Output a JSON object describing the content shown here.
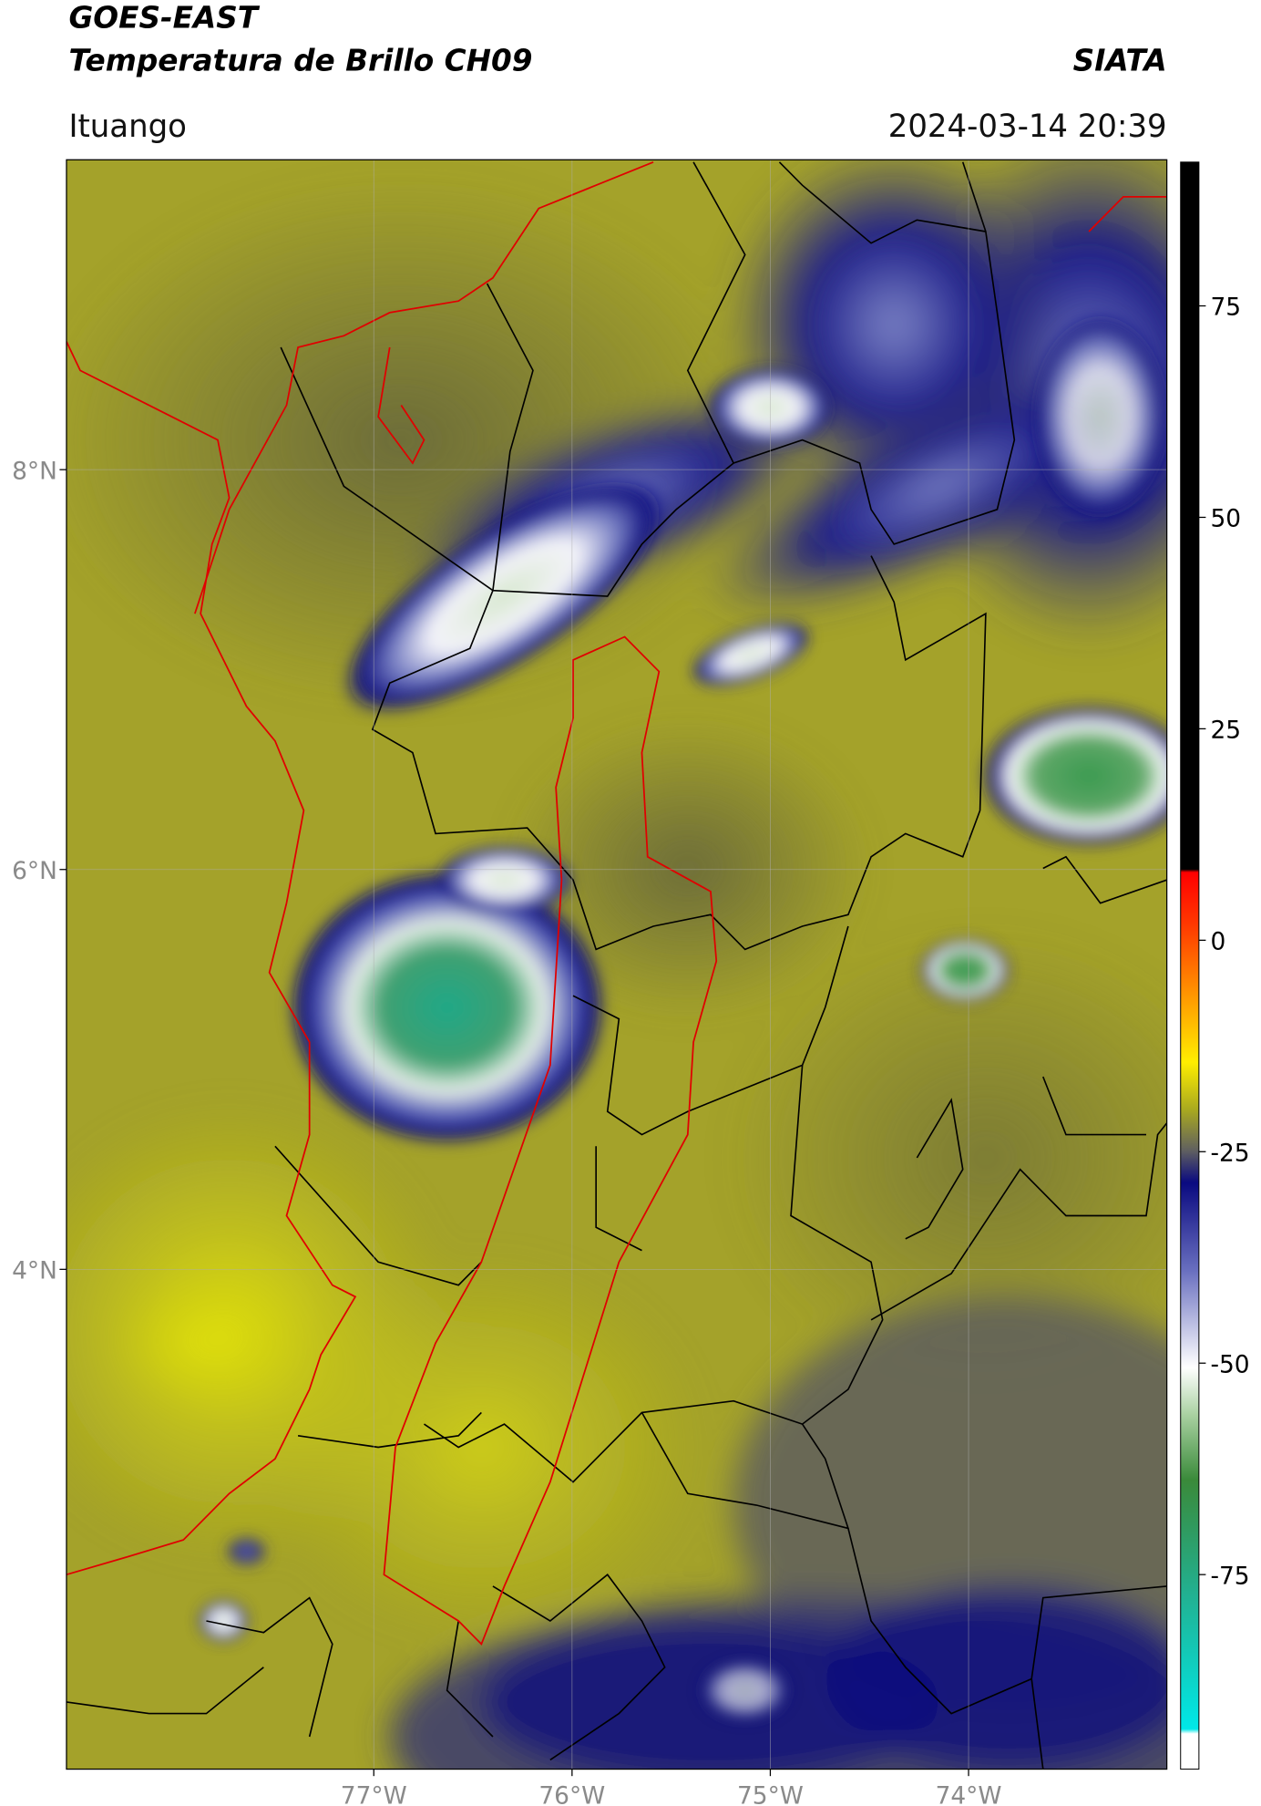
{
  "chart_data": {
    "type": "map",
    "title": "GOES-EAST",
    "subtitle": "Temperatura de Brillo CH09",
    "source": "SIATA",
    "location": "Ituango",
    "timestamp": "2024-03-14 20:39",
    "xlim": [
      -78.55,
      -73.0
    ],
    "ylim": [
      1.5,
      9.55
    ],
    "xticks": [
      {
        "value": -77,
        "label": "77°W"
      },
      {
        "value": -76,
        "label": "76°W"
      },
      {
        "value": -75,
        "label": "75°W"
      },
      {
        "value": -74,
        "label": "74°W"
      }
    ],
    "yticks": [
      {
        "value": 4,
        "label": "4°N"
      },
      {
        "value": 6,
        "label": "6°N"
      },
      {
        "value": 8,
        "label": "8°N"
      }
    ],
    "grid": true,
    "colorbar": {
      "lim": [
        -98,
        92
      ],
      "ticks": [
        75,
        50,
        25,
        0,
        -25,
        -50,
        -75
      ]
    }
  }
}
